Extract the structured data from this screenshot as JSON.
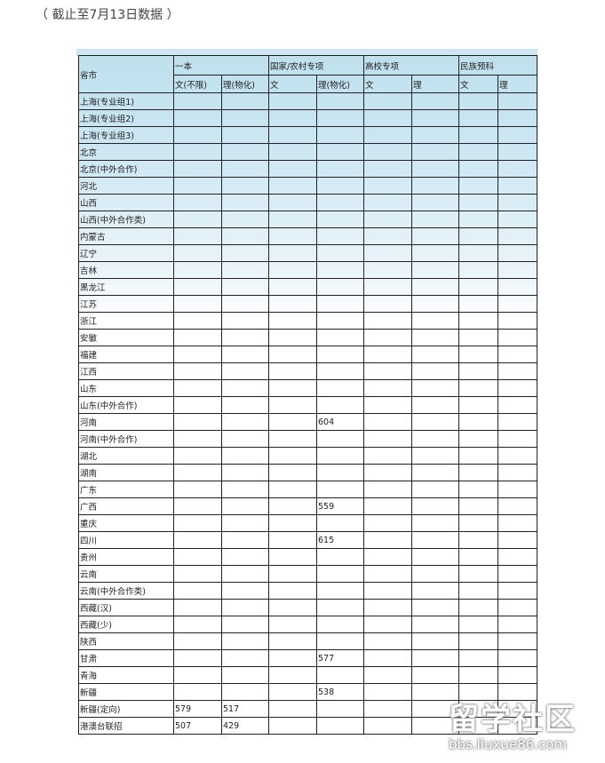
{
  "caption": "（ 截止至7月13日数据 ）",
  "table": {
    "header_province": "省市",
    "groups": [
      "一本",
      "国家/农村专项",
      "高校专项",
      "民族预科"
    ],
    "subheaders": [
      "文(不限)",
      "理(物化)",
      "文",
      "理(物化)",
      "文",
      "理",
      "文",
      "理"
    ],
    "rows": [
      [
        "上海(专业组1)",
        "",
        "",
        "",
        "",
        "",
        "",
        "",
        ""
      ],
      [
        "上海(专业组2)",
        "",
        "",
        "",
        "",
        "",
        "",
        "",
        ""
      ],
      [
        "上海(专业组3)",
        "",
        "",
        "",
        "",
        "",
        "",
        "",
        ""
      ],
      [
        "北京",
        "",
        "",
        "",
        "",
        "",
        "",
        "",
        ""
      ],
      [
        "北京(中外合作)",
        "",
        "",
        "",
        "",
        "",
        "",
        "",
        ""
      ],
      [
        "河北",
        "",
        "",
        "",
        "",
        "",
        "",
        "",
        ""
      ],
      [
        "山西",
        "",
        "",
        "",
        "",
        "",
        "",
        "",
        ""
      ],
      [
        "山西(中外合作类)",
        "",
        "",
        "",
        "",
        "",
        "",
        "",
        ""
      ],
      [
        "内蒙古",
        "",
        "",
        "",
        "",
        "",
        "",
        "",
        ""
      ],
      [
        "辽宁",
        "",
        "",
        "",
        "",
        "",
        "",
        "",
        ""
      ],
      [
        "吉林",
        "",
        "",
        "",
        "",
        "",
        "",
        "",
        ""
      ],
      [
        "黑龙江",
        "",
        "",
        "",
        "",
        "",
        "",
        "",
        ""
      ],
      [
        "江苏",
        "",
        "",
        "",
        "",
        "",
        "",
        "",
        ""
      ],
      [
        "浙江",
        "",
        "",
        "",
        "",
        "",
        "",
        "",
        ""
      ],
      [
        "安徽",
        "",
        "",
        "",
        "",
        "",
        "",
        "",
        ""
      ],
      [
        "福建",
        "",
        "",
        "",
        "",
        "",
        "",
        "",
        ""
      ],
      [
        "江西",
        "",
        "",
        "",
        "",
        "",
        "",
        "",
        ""
      ],
      [
        "山东",
        "",
        "",
        "",
        "",
        "",
        "",
        "",
        ""
      ],
      [
        "山东(中外合作)",
        "",
        "",
        "",
        "",
        "",
        "",
        "",
        ""
      ],
      [
        "河南",
        "",
        "",
        "",
        "604",
        "",
        "",
        "",
        ""
      ],
      [
        "河南(中外合作)",
        "",
        "",
        "",
        "",
        "",
        "",
        "",
        ""
      ],
      [
        "湖北",
        "",
        "",
        "",
        "",
        "",
        "",
        "",
        ""
      ],
      [
        "湖南",
        "",
        "",
        "",
        "",
        "",
        "",
        "",
        ""
      ],
      [
        "广东",
        "",
        "",
        "",
        "",
        "",
        "",
        "",
        ""
      ],
      [
        "广西",
        "",
        "",
        "",
        "559",
        "",
        "",
        "",
        ""
      ],
      [
        "重庆",
        "",
        "",
        "",
        "",
        "",
        "",
        "",
        ""
      ],
      [
        "四川",
        "",
        "",
        "",
        "615",
        "",
        "",
        "",
        ""
      ],
      [
        "贵州",
        "",
        "",
        "",
        "",
        "",
        "",
        "",
        ""
      ],
      [
        "云南",
        "",
        "",
        "",
        "",
        "",
        "",
        "",
        ""
      ],
      [
        "云南(中外合作类)",
        "",
        "",
        "",
        "",
        "",
        "",
        "",
        ""
      ],
      [
        "西藏(汉)",
        "",
        "",
        "",
        "",
        "",
        "",
        "",
        ""
      ],
      [
        "西藏(少)",
        "",
        "",
        "",
        "",
        "",
        "",
        "",
        ""
      ],
      [
        "陕西",
        "",
        "",
        "",
        "",
        "",
        "",
        "",
        ""
      ],
      [
        "甘肃",
        "",
        "",
        "",
        "577",
        "",
        "",
        "",
        ""
      ],
      [
        "青海",
        "",
        "",
        "",
        "",
        "",
        "",
        "",
        ""
      ],
      [
        "新疆",
        "",
        "",
        "",
        "538",
        "",
        "",
        "",
        ""
      ],
      [
        "新疆(定向)",
        "579",
        "517",
        "",
        "",
        "",
        "",
        "",
        ""
      ],
      [
        "港澳台联招",
        "507",
        "429",
        "",
        "",
        "",
        "",
        "",
        ""
      ]
    ]
  },
  "watermark": {
    "main": "留学社区",
    "url": "bbs.liuxue86.com"
  }
}
